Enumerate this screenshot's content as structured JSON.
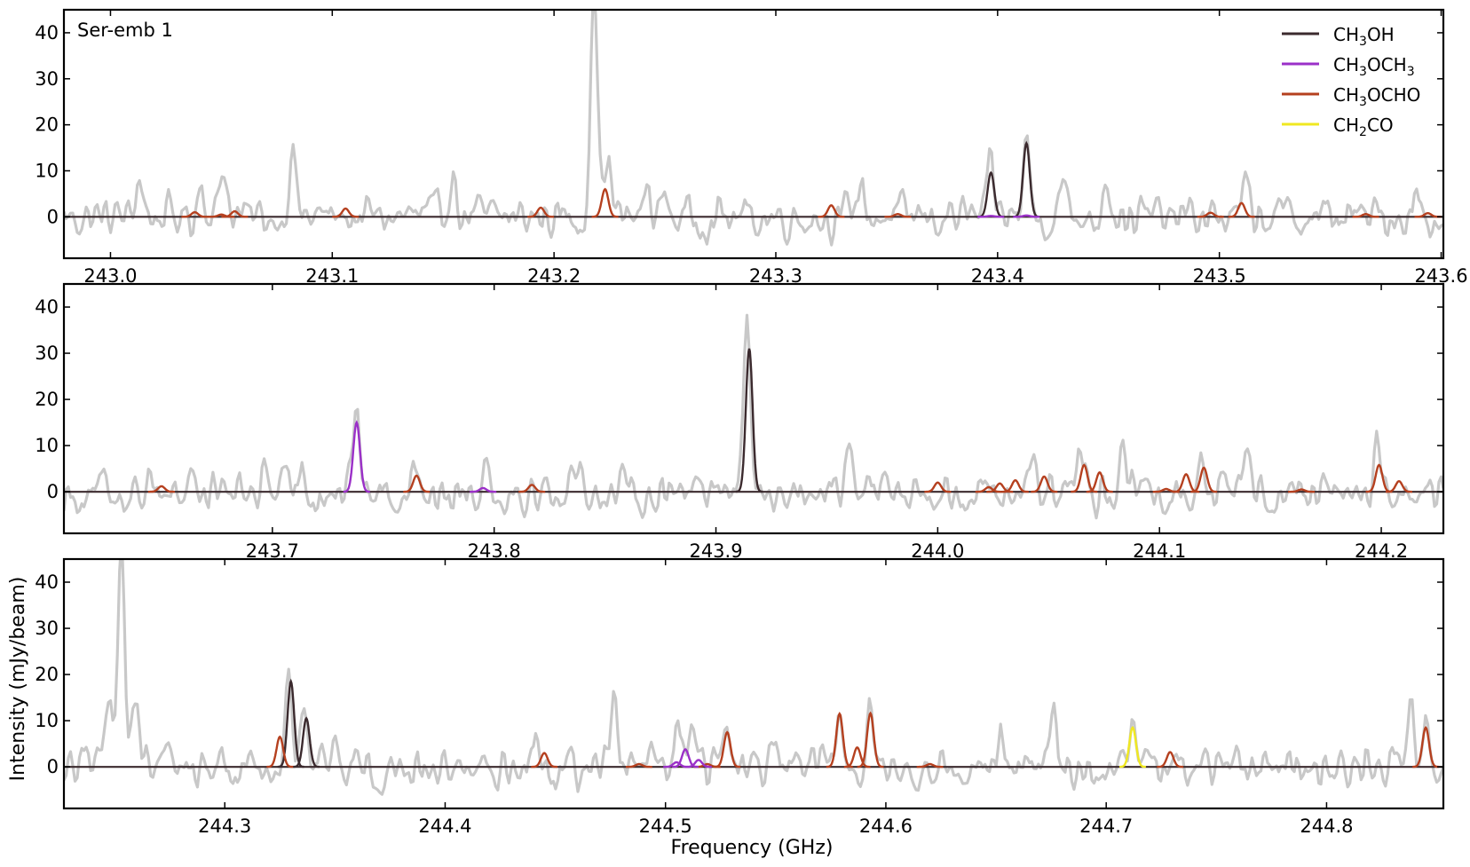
{
  "figure": {
    "object_label": "Ser-emb 1",
    "xlabel": "Frequency (GHz)",
    "ylabel": "Intensity (mJy/beam)"
  },
  "legend": {
    "placement": "top-right",
    "entries": [
      {
        "base": "CH",
        "sub1": "3",
        "mid": "OH",
        "sub2": "",
        "tail": "",
        "color": "#3b2a2e"
      },
      {
        "base": "CH",
        "sub1": "3",
        "mid": "OCH",
        "sub2": "3",
        "tail": "",
        "color": "#9b30c8"
      },
      {
        "base": "CH",
        "sub1": "3",
        "mid": "OCHO",
        "sub2": "",
        "tail": "",
        "color": "#b5401f"
      },
      {
        "base": "CH",
        "sub1": "2",
        "mid": "CO",
        "sub2": "",
        "tail": "",
        "color": "#f0e821"
      }
    ]
  },
  "colors": {
    "observed": "#c8c8c8",
    "baseline": "#3b2a2e"
  },
  "chart_data": [
    {
      "type": "line",
      "panel": 1,
      "xlim": [
        242.979,
        243.601
      ],
      "ylim": [
        -9,
        45
      ],
      "xticks": [
        243.0,
        243.1,
        243.2,
        243.3,
        243.4,
        243.5,
        243.6
      ],
      "xtick_labels": [
        "243.0",
        "243.1",
        "243.2",
        "243.3",
        "243.4",
        "243.5",
        "243.6"
      ],
      "yticks": [
        0,
        10,
        20,
        30,
        40
      ],
      "ytick_labels": [
        "0",
        "10",
        "20",
        "30",
        "40"
      ],
      "grid": false,
      "observed_peaks": [
        {
          "x": 243.013,
          "y": 9
        },
        {
          "x": 243.041,
          "y": 8
        },
        {
          "x": 243.051,
          "y": 12
        },
        {
          "x": 243.082,
          "y": 14
        },
        {
          "x": 243.154,
          "y": 10
        },
        {
          "x": 243.218,
          "y": 50
        },
        {
          "x": 243.224,
          "y": 13
        },
        {
          "x": 243.242,
          "y": 6
        },
        {
          "x": 243.25,
          "y": 5
        },
        {
          "x": 243.338,
          "y": 8
        },
        {
          "x": 243.397,
          "y": 10
        },
        {
          "x": 243.413,
          "y": 16
        },
        {
          "x": 243.429,
          "y": 8
        },
        {
          "x": 243.449,
          "y": 10
        },
        {
          "x": 243.512,
          "y": 6
        },
        {
          "x": 243.589,
          "y": 5
        }
      ],
      "model_lines": [
        {
          "species": "CH3OH",
          "x": 243.397,
          "y": 9.6
        },
        {
          "species": "CH3OH",
          "x": 243.413,
          "y": 16
        },
        {
          "species": "CH3OCHO",
          "x": 243.038,
          "y": 1
        },
        {
          "species": "CH3OCHO",
          "x": 243.05,
          "y": 0.5
        },
        {
          "species": "CH3OCHO",
          "x": 243.056,
          "y": 1.2
        },
        {
          "species": "CH3OCHO",
          "x": 243.106,
          "y": 1.8
        },
        {
          "species": "CH3OCHO",
          "x": 243.194,
          "y": 2
        },
        {
          "species": "CH3OCHO",
          "x": 243.223,
          "y": 6
        },
        {
          "species": "CH3OCHO",
          "x": 243.325,
          "y": 2.5
        },
        {
          "species": "CH3OCHO",
          "x": 243.355,
          "y": 0.6
        },
        {
          "species": "CH3OCHO",
          "x": 243.496,
          "y": 0.9
        },
        {
          "species": "CH3OCHO",
          "x": 243.51,
          "y": 3
        },
        {
          "species": "CH3OCHO",
          "x": 243.566,
          "y": 0.6
        },
        {
          "species": "CH3OCHO",
          "x": 243.594,
          "y": 0.8
        },
        {
          "species": "CH3OCH3",
          "x": 243.397,
          "y": 0.2
        },
        {
          "species": "CH3OCH3",
          "x": 243.413,
          "y": 0.3
        }
      ]
    },
    {
      "type": "line",
      "panel": 2,
      "xlim": [
        243.606,
        244.228
      ],
      "ylim": [
        -9,
        45
      ],
      "xticks": [
        243.7,
        243.8,
        243.9,
        244.0,
        244.1,
        244.2
      ],
      "xtick_labels": [
        "243.7",
        "243.8",
        "243.9",
        "244.0",
        "244.1",
        "244.2"
      ],
      "yticks": [
        0,
        10,
        20,
        30,
        40
      ],
      "ytick_labels": [
        "0",
        "10",
        "20",
        "30",
        "40"
      ],
      "grid": false,
      "observed_peaks": [
        {
          "x": 243.645,
          "y": 6
        },
        {
          "x": 243.663,
          "y": 4
        },
        {
          "x": 243.697,
          "y": 5
        },
        {
          "x": 243.713,
          "y": 6
        },
        {
          "x": 243.738,
          "y": 19
        },
        {
          "x": 243.765,
          "y": 7
        },
        {
          "x": 243.796,
          "y": 7
        },
        {
          "x": 243.838,
          "y": 7
        },
        {
          "x": 243.891,
          "y": 8
        },
        {
          "x": 243.914,
          "y": 38
        },
        {
          "x": 243.96,
          "y": 8
        },
        {
          "x": 244.043,
          "y": 10
        },
        {
          "x": 244.064,
          "y": 10
        },
        {
          "x": 244.083,
          "y": 11
        },
        {
          "x": 244.119,
          "y": 10
        },
        {
          "x": 244.139,
          "y": 12
        },
        {
          "x": 244.198,
          "y": 8
        }
      ],
      "model_lines": [
        {
          "species": "CH3OH",
          "x": 243.915,
          "y": 31
        },
        {
          "species": "CH3OCH3",
          "x": 243.738,
          "y": 15
        },
        {
          "species": "CH3OCH3",
          "x": 243.795,
          "y": 0.8
        },
        {
          "species": "CH3OCHO",
          "x": 243.65,
          "y": 1.2
        },
        {
          "species": "CH3OCHO",
          "x": 243.765,
          "y": 3.5
        },
        {
          "species": "CH3OCHO",
          "x": 243.817,
          "y": 1.5
        },
        {
          "species": "CH3OCHO",
          "x": 244.0,
          "y": 2
        },
        {
          "species": "CH3OCHO",
          "x": 244.023,
          "y": 1
        },
        {
          "species": "CH3OCHO",
          "x": 244.028,
          "y": 1.8
        },
        {
          "species": "CH3OCHO",
          "x": 244.035,
          "y": 2.5
        },
        {
          "species": "CH3OCHO",
          "x": 244.048,
          "y": 3.3
        },
        {
          "species": "CH3OCHO",
          "x": 244.066,
          "y": 5.8
        },
        {
          "species": "CH3OCHO",
          "x": 244.073,
          "y": 4.2
        },
        {
          "species": "CH3OCHO",
          "x": 244.103,
          "y": 0.6
        },
        {
          "species": "CH3OCHO",
          "x": 244.112,
          "y": 3.8
        },
        {
          "species": "CH3OCHO",
          "x": 244.12,
          "y": 5.2
        },
        {
          "species": "CH3OCHO",
          "x": 244.164,
          "y": 0.5
        },
        {
          "species": "CH3OCHO",
          "x": 244.199,
          "y": 5.8
        },
        {
          "species": "CH3OCHO",
          "x": 244.208,
          "y": 2.3
        }
      ]
    },
    {
      "type": "line",
      "panel": 3,
      "xlim": [
        244.227,
        244.853
      ],
      "ylim": [
        -9,
        45
      ],
      "xticks": [
        244.3,
        244.4,
        244.5,
        244.6,
        244.7,
        244.8
      ],
      "xtick_labels": [
        "244.3",
        "244.4",
        "244.5",
        "244.6",
        "244.7",
        "244.8"
      ],
      "yticks": [
        0,
        10,
        20,
        30,
        40
      ],
      "ytick_labels": [
        "0",
        "10",
        "20",
        "30",
        "40"
      ],
      "grid": false,
      "observed_peaks": [
        {
          "x": 244.248,
          "y": 15
        },
        {
          "x": 244.253,
          "y": 50
        },
        {
          "x": 244.259,
          "y": 15
        },
        {
          "x": 244.329,
          "y": 18
        },
        {
          "x": 244.336,
          "y": 12
        },
        {
          "x": 244.35,
          "y": 9
        },
        {
          "x": 244.441,
          "y": 6
        },
        {
          "x": 244.477,
          "y": 15
        },
        {
          "x": 244.506,
          "y": 10
        },
        {
          "x": 244.513,
          "y": 8
        },
        {
          "x": 244.528,
          "y": 7
        },
        {
          "x": 244.579,
          "y": 12
        },
        {
          "x": 244.593,
          "y": 12
        },
        {
          "x": 244.652,
          "y": 8
        },
        {
          "x": 244.676,
          "y": 9
        },
        {
          "x": 244.712,
          "y": 12
        },
        {
          "x": 244.838,
          "y": 12
        },
        {
          "x": 244.845,
          "y": 9
        }
      ],
      "model_lines": [
        {
          "species": "CH3OH",
          "x": 244.33,
          "y": 18.5
        },
        {
          "species": "CH3OH",
          "x": 244.337,
          "y": 10.5
        },
        {
          "species": "CH3OCHO",
          "x": 244.325,
          "y": 6.5
        },
        {
          "species": "CH3OCHO",
          "x": 244.445,
          "y": 3
        },
        {
          "species": "CH3OCHO",
          "x": 244.488,
          "y": 0.6
        },
        {
          "species": "CH3OCHO",
          "x": 244.519,
          "y": 0.6
        },
        {
          "species": "CH3OCHO",
          "x": 244.528,
          "y": 7.5
        },
        {
          "species": "CH3OCHO",
          "x": 244.579,
          "y": 11.5
        },
        {
          "species": "CH3OCHO",
          "x": 244.587,
          "y": 4.2
        },
        {
          "species": "CH3OCHO",
          "x": 244.593,
          "y": 11.6
        },
        {
          "species": "CH3OCHO",
          "x": 244.62,
          "y": 0.6
        },
        {
          "species": "CH3OCHO",
          "x": 244.729,
          "y": 3.2
        },
        {
          "species": "CH3OCHO",
          "x": 244.845,
          "y": 8.5
        },
        {
          "species": "CH3OCH3",
          "x": 244.505,
          "y": 1
        },
        {
          "species": "CH3OCH3",
          "x": 244.509,
          "y": 3.8
        },
        {
          "species": "CH3OCH3",
          "x": 244.515,
          "y": 1.5
        },
        {
          "species": "CH2CO",
          "x": 244.712,
          "y": 8.5
        }
      ]
    }
  ]
}
